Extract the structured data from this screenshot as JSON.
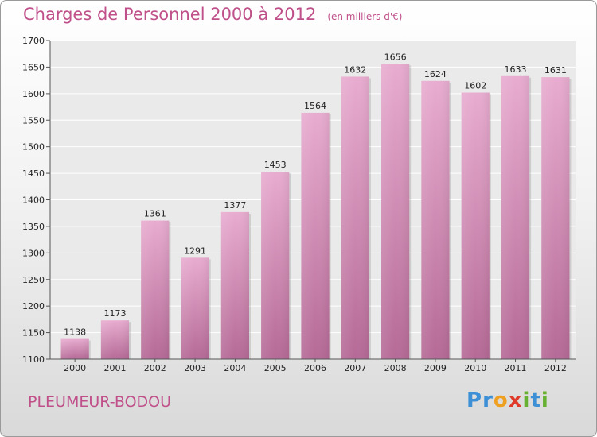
{
  "header": {
    "title": "Charges de Personnel 2000 à 2012",
    "subtitle": "(en milliers d'€)"
  },
  "footer": {
    "commune": "PLEUMEUR-BODOU",
    "logo_letters": [
      {
        "ch": "P",
        "color": "#3d8fd6"
      },
      {
        "ch": "r",
        "color": "#3d8fd6"
      },
      {
        "ch": "o",
        "color": "#f0a020"
      },
      {
        "ch": "x",
        "color": "#e03a2a"
      },
      {
        "ch": "i",
        "color": "#66b032"
      },
      {
        "ch": "t",
        "color": "#3d8fd6"
      },
      {
        "ch": "i",
        "color": "#66b032"
      }
    ]
  },
  "chart_data": {
    "type": "bar",
    "categories": [
      "2000",
      "2001",
      "2002",
      "2003",
      "2004",
      "2005",
      "2006",
      "2007",
      "2008",
      "2009",
      "2010",
      "2011",
      "2012"
    ],
    "values": [
      1138,
      1173,
      1361,
      1291,
      1377,
      1453,
      1564,
      1632,
      1656,
      1624,
      1602,
      1633,
      1631
    ],
    "title": "Charges de Personnel 2000 à 2012",
    "xlabel": "",
    "ylabel": "",
    "ylim": [
      1100,
      1700
    ],
    "yticks": [
      1100,
      1150,
      1200,
      1250,
      1300,
      1350,
      1400,
      1450,
      1500,
      1550,
      1600,
      1650,
      1700
    ],
    "grid": true,
    "bar_color_top": "#e8acd0",
    "bar_color_bottom": "#b56a96"
  }
}
